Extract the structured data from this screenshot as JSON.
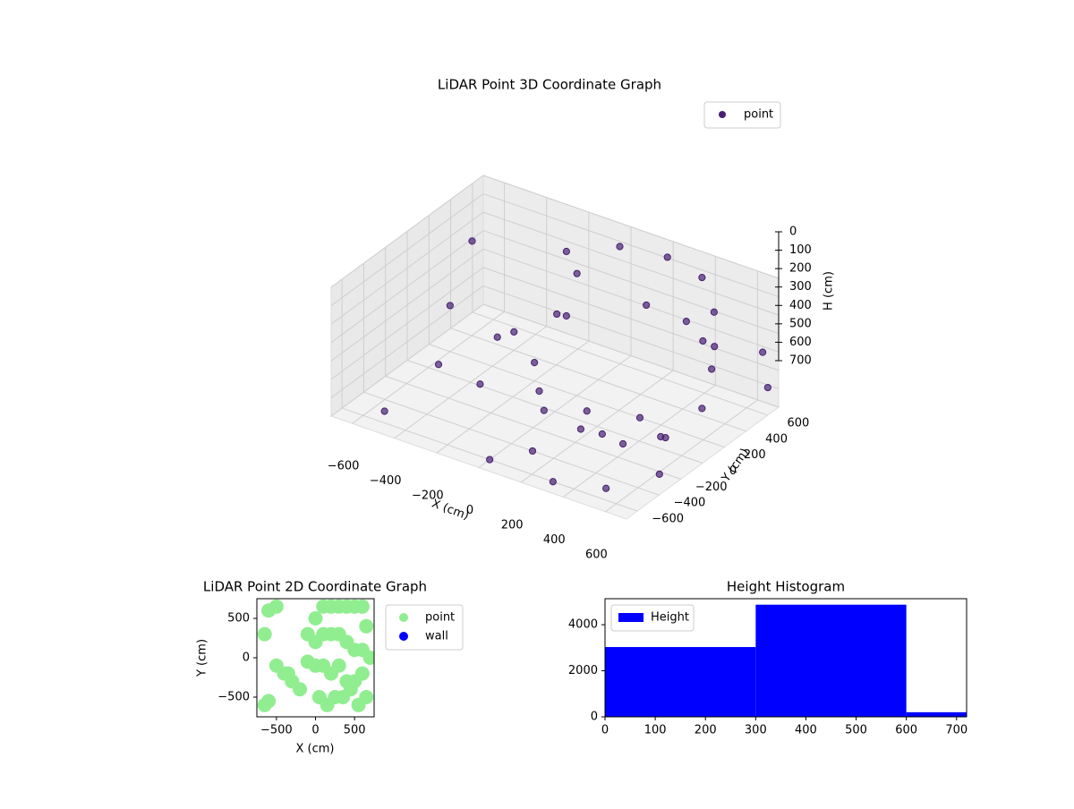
{
  "chart_data": [
    {
      "type": "scatter3d",
      "title": "LiDAR Point 3D Coordinate Graph",
      "xlabel": "X (cm)",
      "ylabel": "Y (cm)",
      "zlabel": "H (cm)",
      "xlim": [
        -700,
        700
      ],
      "ylim": [
        -700,
        700
      ],
      "zlim": [
        0,
        700
      ],
      "z_inverted": true,
      "xticks": [
        {
          "value": -600,
          "label": "−600"
        },
        {
          "value": -400,
          "label": "−400"
        },
        {
          "value": -200,
          "label": "−200"
        },
        0,
        200,
        400,
        600
      ],
      "yticks": [
        {
          "value": -600,
          "label": "−600"
        },
        {
          "value": -400,
          "label": "−400"
        },
        {
          "value": -200,
          "label": "−200"
        },
        0,
        200,
        400,
        600
      ],
      "zticks": [
        0,
        100,
        200,
        300,
        400,
        500,
        600,
        700
      ],
      "grid": true,
      "legend": "upper right",
      "series": [
        {
          "name": "point",
          "color": "#482173",
          "x": [
            -100,
            50,
            250,
            450,
            600,
            650,
            150,
            350,
            550,
            640,
            -100,
            -50,
            620,
            550,
            400,
            200,
            0,
            -100,
            300,
            100,
            450,
            250,
            -600,
            -500,
            -400,
            -200,
            -650,
            -300,
            -550,
            0,
            500,
            650,
            700,
            650,
            -200,
            -350,
            100,
            300
          ],
          "y": [
            300,
            500,
            550,
            480,
            300,
            100,
            550,
            530,
            400,
            200,
            300,
            300,
            150,
            -50,
            -150,
            -150,
            -100,
            50,
            200,
            100,
            100,
            -50,
            200,
            -100,
            400,
            -300,
            500,
            600,
            -500,
            -600,
            -500,
            -300,
            600,
            650,
            200,
            150,
            -400,
            -600
          ],
          "z": [
            0,
            0,
            0,
            0,
            50,
            100,
            300,
            300,
            300,
            300,
            350,
            100,
            500,
            600,
            650,
            650,
            650,
            650,
            700,
            700,
            700,
            700,
            450,
            600,
            600,
            500,
            250,
            550,
            700,
            700,
            700,
            650,
            550,
            400,
            600,
            500,
            700,
            700
          ]
        }
      ]
    },
    {
      "type": "scatter",
      "title": "LiDAR Point 2D Coordinate Graph",
      "xlabel": "X (cm)",
      "ylabel": "Y (cm)",
      "xlim": [
        -750,
        750
      ],
      "ylim": [
        -750,
        750
      ],
      "xticks": [
        {
          "value": -500,
          "label": "−500"
        },
        0,
        500
      ],
      "yticks": [
        {
          "value": -500,
          "label": "−500"
        },
        0,
        500
      ],
      "legend": "outside upper right",
      "series": [
        {
          "name": "point",
          "color": "#90ee90",
          "x": [
            -600,
            -500,
            -650,
            -400,
            -300,
            -600,
            -200,
            -100,
            0,
            100,
            200,
            300,
            400,
            500,
            600,
            650,
            0,
            100,
            200,
            300,
            400,
            500,
            600,
            -100,
            0,
            100,
            200,
            300,
            400,
            500,
            600,
            700,
            50,
            150,
            250,
            350,
            450,
            550,
            650,
            -500,
            -350,
            -650
          ],
          "y": [
            600,
            650,
            300,
            -200,
            -300,
            -550,
            -400,
            300,
            500,
            650,
            650,
            650,
            650,
            650,
            650,
            400,
            200,
            300,
            300,
            300,
            200,
            100,
            100,
            -50,
            -100,
            -100,
            -200,
            -100,
            -300,
            -300,
            -200,
            0,
            -500,
            -600,
            -500,
            -500,
            -400,
            -600,
            -500,
            -100,
            -200,
            -600
          ]
        },
        {
          "name": "wall",
          "color": "#0000ff",
          "x": [],
          "y": []
        }
      ]
    },
    {
      "type": "histogram",
      "title": "Height Histogram",
      "name": "Height",
      "color": "#0000ff",
      "bins": [
        0,
        300,
        600,
        720
      ],
      "counts": [
        3030,
        4870,
        200
      ],
      "xlim": [
        0,
        720
      ],
      "ylim": [
        0,
        5130
      ],
      "xticks": [
        0,
        100,
        200,
        300,
        400,
        500,
        600,
        700
      ],
      "yticks": [
        0,
        2000,
        4000
      ],
      "legend": "upper left"
    }
  ]
}
